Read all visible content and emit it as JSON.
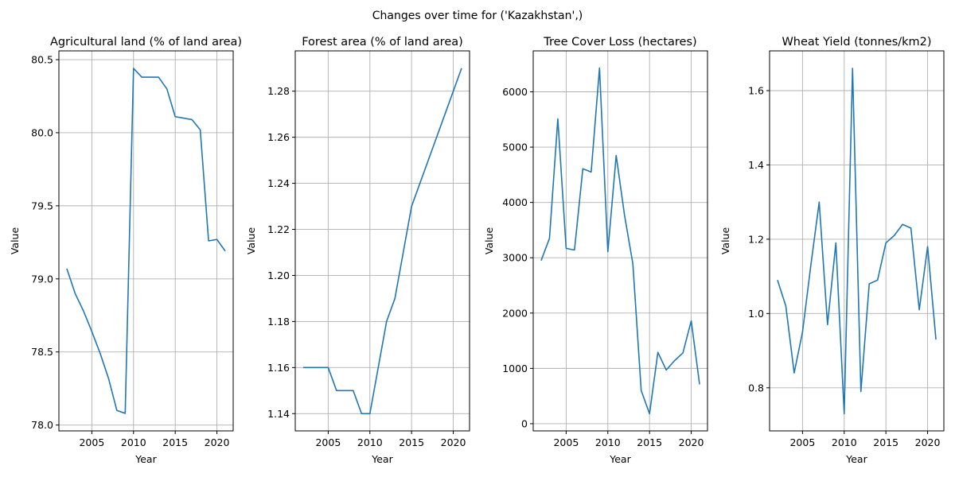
{
  "figure": {
    "suptitle": "Changes over time for ('Kazakhstan',)",
    "line_color": "#1f77b4"
  },
  "chart_data": [
    {
      "type": "line",
      "title": "Agricultural land (% of land area)",
      "xlabel": "Year",
      "ylabel": "Value",
      "grid": true,
      "xlim": [
        2001.05,
        2021.95
      ],
      "ylim": [
        77.96,
        80.56
      ],
      "xticks": [
        2005,
        2010,
        2015,
        2020
      ],
      "yticks": [
        78.0,
        78.5,
        79.0,
        79.5,
        80.0,
        80.5
      ],
      "ytick_labels": [
        "78.0",
        "78.5",
        "79.0",
        "79.5",
        "80.0",
        "80.5"
      ],
      "x": [
        2002,
        2003,
        2004,
        2005,
        2006,
        2007,
        2008,
        2009,
        2010,
        2011,
        2012,
        2013,
        2014,
        2015,
        2016,
        2017,
        2018,
        2019,
        2020,
        2021
      ],
      "values": [
        79.07,
        78.9,
        78.78,
        78.64,
        78.49,
        78.32,
        78.1,
        78.08,
        80.44,
        80.38,
        80.38,
        80.38,
        80.3,
        80.11,
        80.1,
        80.09,
        80.02,
        79.26,
        79.27,
        79.19
      ]
    },
    {
      "type": "line",
      "title": "Forest area (% of land area)",
      "xlabel": "Year",
      "ylabel": "Value",
      "grid": true,
      "xlim": [
        2001.05,
        2021.95
      ],
      "ylim": [
        1.1325,
        1.2975
      ],
      "xticks": [
        2005,
        2010,
        2015,
        2020
      ],
      "yticks": [
        1.14,
        1.16,
        1.18,
        1.2,
        1.22,
        1.24,
        1.26,
        1.28
      ],
      "ytick_labels": [
        "1.14",
        "1.16",
        "1.18",
        "1.20",
        "1.22",
        "1.24",
        "1.26",
        "1.28"
      ],
      "x": [
        2002,
        2003,
        2004,
        2005,
        2006,
        2007,
        2008,
        2009,
        2010,
        2011,
        2012,
        2013,
        2014,
        2015,
        2016,
        2017,
        2018,
        2019,
        2020,
        2021
      ],
      "values": [
        1.16,
        1.16,
        1.16,
        1.16,
        1.15,
        1.15,
        1.15,
        1.14,
        1.14,
        1.16,
        1.18,
        1.19,
        1.21,
        1.23,
        1.24,
        1.25,
        1.26,
        1.27,
        1.28,
        1.29
      ]
    },
    {
      "type": "line",
      "title": "Tree Cover Loss (hectares)",
      "xlabel": "Year",
      "ylabel": "Value",
      "grid": true,
      "xlim": [
        2001.05,
        2021.95
      ],
      "ylim": [
        -130,
        6740
      ],
      "xticks": [
        2005,
        2010,
        2015,
        2020
      ],
      "yticks": [
        0,
        1000,
        2000,
        3000,
        4000,
        5000,
        6000
      ],
      "ytick_labels": [
        "0",
        "1000",
        "2000",
        "3000",
        "4000",
        "5000",
        "6000"
      ],
      "x": [
        2002,
        2003,
        2004,
        2005,
        2006,
        2007,
        2008,
        2009,
        2010,
        2011,
        2012,
        2013,
        2014,
        2015,
        2016,
        2017,
        2018,
        2019,
        2020,
        2021
      ],
      "values": [
        2950,
        3350,
        5510,
        3170,
        3140,
        4610,
        4550,
        6430,
        3110,
        4850,
        3770,
        2890,
        600,
        180,
        1290,
        970,
        1140,
        1280,
        1860,
        710
      ]
    },
    {
      "type": "line",
      "title": "Wheat Yield (tonnes/km2)",
      "xlabel": "Year",
      "ylabel": "Value",
      "grid": true,
      "xlim": [
        2001.05,
        2021.95
      ],
      "ylim": [
        0.684,
        1.707
      ],
      "xticks": [
        2005,
        2010,
        2015,
        2020
      ],
      "yticks": [
        0.8,
        1.0,
        1.2,
        1.4,
        1.6
      ],
      "ytick_labels": [
        "0.8",
        "1.0",
        "1.2",
        "1.4",
        "1.6"
      ],
      "x": [
        2002,
        2003,
        2004,
        2005,
        2006,
        2007,
        2008,
        2009,
        2010,
        2011,
        2012,
        2013,
        2014,
        2015,
        2016,
        2017,
        2018,
        2019,
        2020,
        2021
      ],
      "values": [
        1.09,
        1.02,
        0.84,
        0.95,
        1.13,
        1.3,
        0.97,
        1.19,
        0.73,
        1.66,
        0.79,
        1.08,
        1.09,
        1.19,
        1.21,
        1.24,
        1.23,
        1.01,
        1.18,
        0.93
      ]
    }
  ]
}
